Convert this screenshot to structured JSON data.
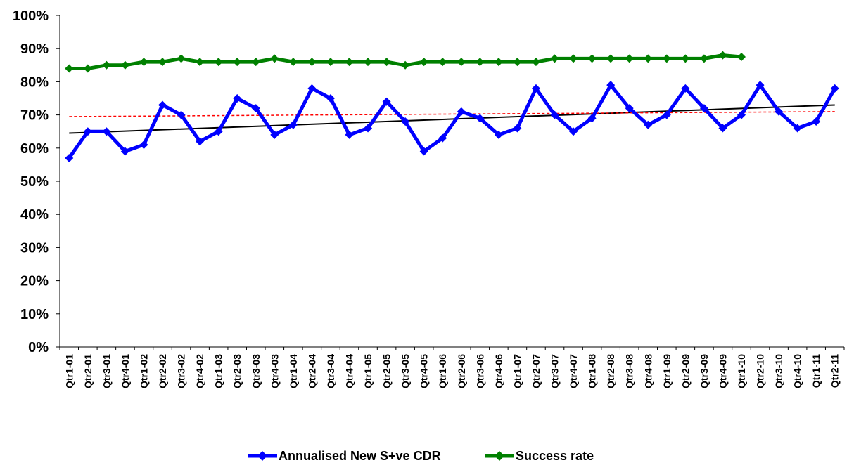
{
  "chart_data": {
    "type": "line",
    "title": "",
    "xlabel": "",
    "ylabel": "",
    "ylim": [
      0,
      100
    ],
    "y_ticks": [
      "0%",
      "10%",
      "20%",
      "30%",
      "40%",
      "50%",
      "60%",
      "70%",
      "80%",
      "90%",
      "100%"
    ],
    "categories": [
      "Qtr1-01",
      "Qtr2-01",
      "Qtr3-01",
      "Qtr4-01",
      "Qtr1-02",
      "Qtr2-02",
      "Qtr3-02",
      "Qtr4-02",
      "Qtr1-03",
      "Qtr2-03",
      "Qtr3-03",
      "Qtr4-03",
      "Qtr1-04",
      "Qtr2-04",
      "Qtr3-04",
      "Qtr4-04",
      "Qtr1-05",
      "Qtr2-05",
      "Qtr3-05",
      "Qtr4-05",
      "Qtr1-06",
      "Qtr2-06",
      "Qtr3-06",
      "Qtr4-06",
      "Qtr1-07",
      "Qtr2-07",
      "Qtr3-07",
      "Qtr4-07",
      "Qtr1-08",
      "Qtr2-08",
      "Qtr3-08",
      "Qtr4-08",
      "Qtr1-09",
      "Qtr2-09",
      "Qtr3-09",
      "Qtr4-09",
      "Qtr1-10",
      "Qtr2-10",
      "Qtr3-10",
      "Qtr4-10",
      "Qtr1-11",
      "Qtr2-11"
    ],
    "series": [
      {
        "name": "Annualised New S+ve CDR",
        "color": "#0000ff",
        "marker": "diamond",
        "values": [
          57,
          65,
          65,
          59,
          61,
          73,
          70,
          62,
          65,
          75,
          72,
          64,
          67,
          78,
          75,
          64,
          66,
          74,
          68,
          59,
          63,
          71,
          69,
          64,
          66,
          78,
          70,
          65,
          69,
          79,
          72,
          67,
          70,
          78,
          72,
          66,
          70,
          79,
          71,
          66,
          68,
          78
        ]
      },
      {
        "name": "Success rate",
        "color": "#008000",
        "marker": "diamond",
        "values": [
          84,
          84,
          85,
          85,
          86,
          86,
          87,
          86,
          86,
          86,
          86,
          87,
          86,
          86,
          86,
          86,
          86,
          86,
          85,
          86,
          86,
          86,
          86,
          86,
          86,
          86,
          87,
          87,
          87,
          87,
          87,
          87,
          87,
          87,
          87,
          88,
          87.5,
          null,
          null,
          null,
          null,
          null
        ]
      }
    ],
    "trendlines": [
      {
        "kind": "linear",
        "color": "#000000",
        "style": "solid",
        "start": 64.5,
        "end": 73
      },
      {
        "kind": "linear",
        "color": "#ff0000",
        "style": "dashed",
        "start": 69.5,
        "end": 71
      }
    ],
    "grid": false,
    "legend_position": "bottom"
  }
}
